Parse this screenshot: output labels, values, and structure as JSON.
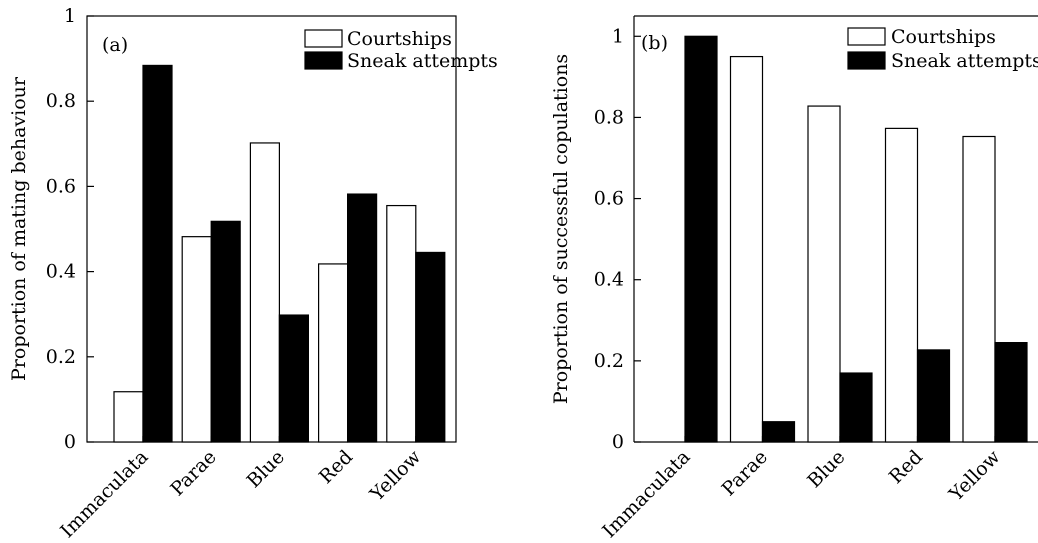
{
  "chart_data": [
    {
      "type": "bar",
      "panel_label": "(a)",
      "ylabel": "Proportion of mating behaviour",
      "categories": [
        "Immaculata",
        "Parae",
        "Blue",
        "Red",
        "Yellow"
      ],
      "ylim": [
        0,
        1
      ],
      "yticks": [
        "0",
        "0.2",
        "0.4",
        "0.6",
        "0.8",
        "1"
      ],
      "tick_values": [
        0,
        0.2,
        0.4,
        0.6,
        0.8,
        1
      ],
      "series": [
        {
          "name": "Courtships",
          "color": "#ffffff",
          "values": [
            0.118,
            0.482,
            0.702,
            0.418,
            0.555
          ]
        },
        {
          "name": "Sneak attempts",
          "color": "#000000",
          "values": [
            0.884,
            0.518,
            0.298,
            0.582,
            0.445
          ]
        }
      ],
      "legend_position": "top-right",
      "grid": false
    },
    {
      "type": "bar",
      "panel_label": "(b)",
      "ylabel": "Proportion of successful copulations",
      "categories": [
        "Immaculata",
        "Parae",
        "Blue",
        "Red",
        "Yellow"
      ],
      "ylim": [
        0,
        1.05
      ],
      "yticks": [
        "0",
        "0.2",
        "0.4",
        "0.6",
        "0.8",
        "1"
      ],
      "tick_values": [
        0,
        0.2,
        0.4,
        0.6,
        0.8,
        1
      ],
      "series": [
        {
          "name": "Courtships",
          "color": "#ffffff",
          "values": [
            0,
            0.95,
            0.828,
            0.773,
            0.753
          ]
        },
        {
          "name": "Sneak attempts",
          "color": "#000000",
          "values": [
            1.0,
            0.05,
            0.17,
            0.227,
            0.245
          ]
        }
      ],
      "legend_position": "top-right",
      "grid": false
    }
  ]
}
